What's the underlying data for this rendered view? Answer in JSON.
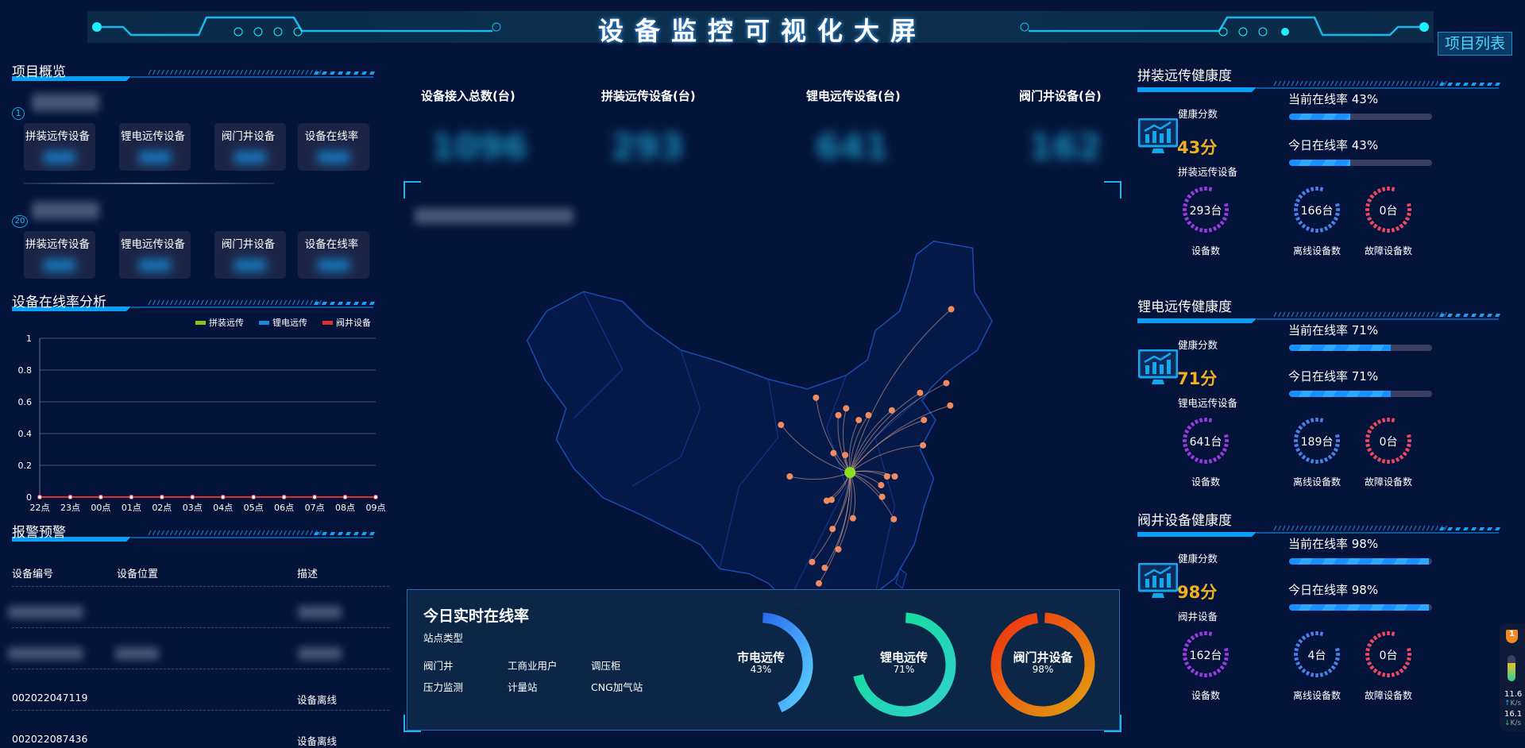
{
  "header": {
    "title": "设备监控可视化大屏",
    "project_list_button": "项目列表"
  },
  "left": {
    "overview": {
      "title": "项目概览",
      "projects": [
        {
          "index": "1",
          "name": "blurred",
          "cards": [
            {
              "label": "拼装远传设备"
            },
            {
              "label": "锂电远传设备"
            },
            {
              "label": "阀门井设备"
            },
            {
              "label": "设备在线率"
            }
          ]
        },
        {
          "index": "20",
          "name": "blurred",
          "cards": [
            {
              "label": "拼装远传设备"
            },
            {
              "label": "锂电远传设备"
            },
            {
              "label": "阀门井设备"
            },
            {
              "label": "设备在线率"
            }
          ]
        }
      ]
    },
    "online_analysis": {
      "title": "设备在线率分析"
    },
    "alarm": {
      "title": "报警预警",
      "columns": [
        "设备编号",
        "设备位置",
        "描述"
      ],
      "rows": [
        {
          "id": "",
          "location": "",
          "desc": ""
        },
        {
          "id": "",
          "location": "",
          "desc": ""
        },
        {
          "id": "002022047119",
          "location": "",
          "desc": "设备离线"
        },
        {
          "id": "002022087436",
          "location": "",
          "desc": "设备离线"
        }
      ]
    }
  },
  "chart_data": {
    "type": "line",
    "categories": [
      "22点",
      "23点",
      "00点",
      "01点",
      "02点",
      "03点",
      "04点",
      "05点",
      "06点",
      "07点",
      "08点",
      "09点"
    ],
    "y_ticks": [
      "0",
      "0.2",
      "0.4",
      "0.6",
      "0.8",
      "1"
    ],
    "ylim": [
      0,
      1
    ],
    "grid": true,
    "legend_placement": "top-right",
    "series": [
      {
        "name": "拼装远传",
        "color": "#8ec21f",
        "values": [
          0,
          0,
          0,
          0,
          0,
          0,
          0,
          0,
          0,
          0,
          0,
          0
        ]
      },
      {
        "name": "锂电远传",
        "color": "#1a8ae0",
        "values": [
          0,
          0,
          0,
          0,
          0,
          0,
          0,
          0,
          0,
          0,
          0,
          0
        ]
      },
      {
        "name": "阀井设备",
        "color": "#e03030",
        "values": [
          0,
          0,
          0,
          0,
          0,
          0,
          0,
          0,
          0,
          0,
          0,
          0
        ]
      }
    ]
  },
  "center": {
    "stats": [
      {
        "label": "设备接入总数(台)",
        "value": "1096"
      },
      {
        "label": "拼装远传设备(台)",
        "value": "293"
      },
      {
        "label": "锂电远传设备(台)",
        "value": "641"
      },
      {
        "label": "阀门井设备(台)",
        "value": "162"
      }
    ],
    "realtime": {
      "title": "今日实时在线率",
      "type_label": "站点类型",
      "types": [
        "阀门井",
        "工商业用户",
        "调压柜",
        "压力监测",
        "计量站",
        "CNG加气站"
      ],
      "gauges": [
        {
          "name": "市电远传",
          "percent": "43%",
          "value": 43,
          "colors": [
            "#2a6cf0",
            "#5ad0ff"
          ]
        },
        {
          "name": "锂电远传",
          "percent": "71%",
          "value": 71,
          "colors": [
            "#10e090",
            "#30d0d0"
          ]
        },
        {
          "name": "阀门井设备",
          "percent": "98%",
          "value": 98,
          "colors": [
            "#f03010",
            "#e0a010"
          ]
        }
      ]
    }
  },
  "right": {
    "sections": [
      {
        "title": "拼装远传健康度",
        "score_label": "健康分数",
        "score": "43分",
        "device": "拼装远传设备",
        "current_label": "当前在线率 43%",
        "current": 43,
        "today_label": "今日在线率 43%",
        "today": 43,
        "rings": [
          {
            "value": "293台",
            "label": "设备数",
            "color": "#9a3ae0"
          },
          {
            "value": "166台",
            "label": "离线设备数",
            "color": "#4a80e8"
          },
          {
            "value": "0台",
            "label": "故障设备数",
            "color": "#f04860"
          }
        ]
      },
      {
        "title": "锂电远传健康度",
        "score_label": "健康分数",
        "score": "71分",
        "device": "锂电远传设备",
        "current_label": "当前在线率 71%",
        "current": 71,
        "today_label": "今日在线率 71%",
        "today": 71,
        "rings": [
          {
            "value": "641台",
            "label": "设备数",
            "color": "#9a3ae0"
          },
          {
            "value": "189台",
            "label": "离线设备数",
            "color": "#4a80e8"
          },
          {
            "value": "0台",
            "label": "故障设备数",
            "color": "#f04860"
          }
        ]
      },
      {
        "title": "阀井设备健康度",
        "score_label": "健康分数",
        "score": "98分",
        "device": "阀井设备",
        "current_label": "当前在线率 98%",
        "current": 98,
        "today_label": "今日在线率 98%",
        "today": 98,
        "rings": [
          {
            "value": "162台",
            "label": "设备数",
            "color": "#9a3ae0"
          },
          {
            "value": "4台",
            "label": "离线设备数",
            "color": "#4a80e8"
          },
          {
            "value": "0台",
            "label": "故障设备数",
            "color": "#f04860"
          }
        ]
      }
    ]
  },
  "widget": {
    "badge": "1",
    "up": "11.6",
    "down": "16.1",
    "unit": "K/s"
  }
}
